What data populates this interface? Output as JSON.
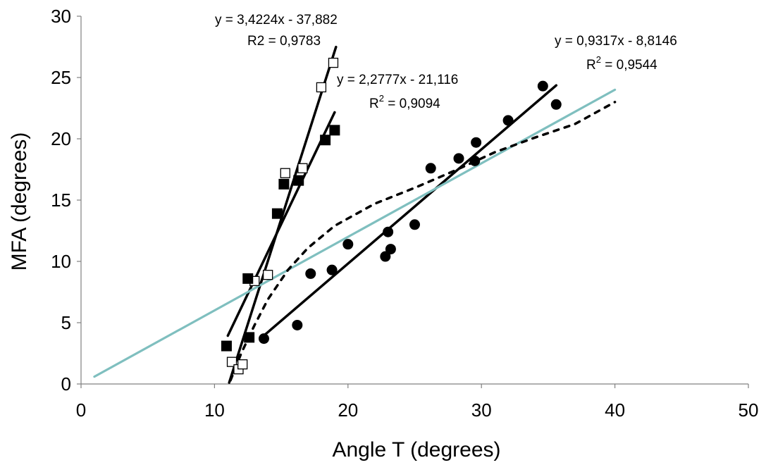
{
  "chart_data": {
    "type": "scatter",
    "xlabel": "Angle T (degrees)",
    "ylabel": "MFA (degrees)",
    "xlim": [
      0,
      50
    ],
    "ylim": [
      0,
      30
    ],
    "xticks": [
      "0",
      "10",
      "20",
      "30",
      "40",
      "50"
    ],
    "yticks": [
      "0",
      "5",
      "10",
      "15",
      "20",
      "25",
      "30"
    ],
    "grid": false,
    "legend": "none",
    "series": [
      {
        "marker": "open-square",
        "color": "#000000",
        "points": [
          [
            11.3,
            1.8
          ],
          [
            11.8,
            1.2
          ],
          [
            12.1,
            1.6
          ],
          [
            13.0,
            8.4
          ],
          [
            14.0,
            8.9
          ],
          [
            15.3,
            17.2
          ],
          [
            16.6,
            17.6
          ],
          [
            18.0,
            24.2
          ],
          [
            18.9,
            26.2
          ]
        ]
      },
      {
        "marker": "filled-square",
        "color": "#000000",
        "points": [
          [
            10.9,
            3.1
          ],
          [
            12.5,
            8.6
          ],
          [
            12.6,
            3.8
          ],
          [
            14.7,
            13.9
          ],
          [
            15.2,
            16.3
          ],
          [
            16.3,
            16.6
          ],
          [
            18.3,
            19.9
          ],
          [
            19.0,
            20.7
          ]
        ]
      },
      {
        "marker": "filled-circle",
        "color": "#000000",
        "points": [
          [
            13.7,
            3.7
          ],
          [
            16.2,
            4.8
          ],
          [
            17.2,
            9.0
          ],
          [
            18.8,
            9.3
          ],
          [
            20.0,
            11.4
          ],
          [
            22.8,
            10.4
          ],
          [
            23.0,
            12.4
          ],
          [
            23.2,
            11.0
          ],
          [
            25.0,
            13.0
          ],
          [
            26.2,
            17.6
          ],
          [
            28.3,
            18.4
          ],
          [
            29.5,
            18.2
          ],
          [
            29.6,
            19.7
          ],
          [
            32.0,
            21.5
          ],
          [
            34.6,
            24.3
          ],
          [
            35.6,
            22.8
          ]
        ]
      }
    ],
    "fit_lines": [
      {
        "slope": 3.4224,
        "intercept": -37.882,
        "x_range": [
          11.1,
          19.1
        ],
        "style": "solid",
        "color": "#000000"
      },
      {
        "slope": 2.2777,
        "intercept": -21.116,
        "x_range": [
          11.0,
          19.0
        ],
        "style": "solid",
        "color": "#000000"
      },
      {
        "slope": 0.9317,
        "intercept": -8.8146,
        "x_range": [
          13.7,
          35.6
        ],
        "style": "solid",
        "color": "#000000"
      },
      {
        "slope": 0.6,
        "intercept": 0.0,
        "x_range": [
          1.0,
          40.0
        ],
        "style": "solid",
        "color": "#7fbfbf"
      },
      {
        "points": [
          [
            11.2,
            0.3
          ],
          [
            12.0,
            2.5
          ],
          [
            13.0,
            4.8
          ],
          [
            14.0,
            6.9
          ],
          [
            15.5,
            9.3
          ],
          [
            17.0,
            11.1
          ],
          [
            19.0,
            12.9
          ],
          [
            22.0,
            14.7
          ],
          [
            25.0,
            16.0
          ],
          [
            28.0,
            17.4
          ],
          [
            31.0,
            18.9
          ],
          [
            34.0,
            20.1
          ],
          [
            37.0,
            21.2
          ],
          [
            40.0,
            23.0
          ]
        ],
        "style": "dashed",
        "color": "#000000"
      }
    ],
    "annotations": [
      {
        "line1": "y = 3,4224x - 37,882",
        "line2_prefix": "R2 = 0,9783",
        "sup": "",
        "line2_suffix": ""
      },
      {
        "line1": "y = 2,2777x - 21,116",
        "line2_prefix": "R",
        "sup": "2",
        "line2_suffix": " = 0,9094"
      },
      {
        "line1": "y = 0,9317x - 8,8146",
        "line2_prefix": "R",
        "sup": "2",
        "line2_suffix": " = 0,9544"
      }
    ]
  }
}
